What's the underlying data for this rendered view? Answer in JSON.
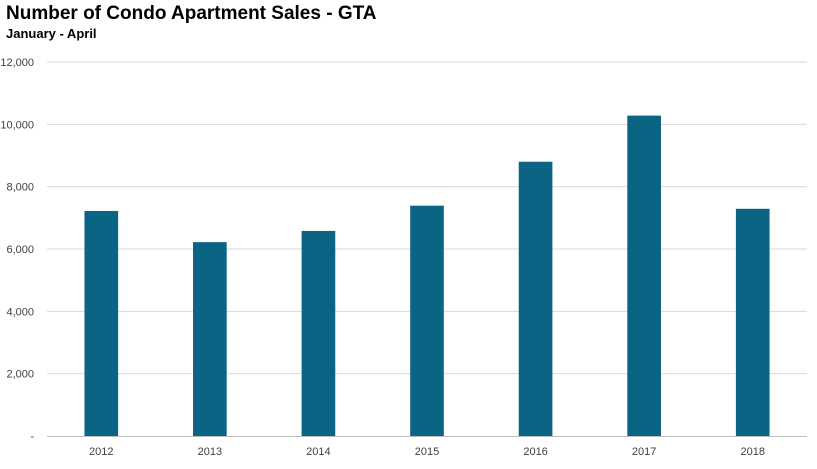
{
  "title": "Number of Condo Apartment Sales - GTA",
  "subtitle": "January - April",
  "colors": {
    "bar": "#0B6484",
    "grid": "#D9D9D9",
    "axis": "#BFBFBF",
    "tick_text": "#404040"
  },
  "chart_data": {
    "type": "bar",
    "title": "Number of Condo Apartment Sales - GTA",
    "subtitle": "January - April",
    "categories": [
      "2012",
      "2013",
      "2014",
      "2015",
      "2016",
      "2017",
      "2018"
    ],
    "values": [
      7220,
      6220,
      6580,
      7390,
      8800,
      10280,
      7290
    ],
    "xlabel": "",
    "ylabel": "",
    "ylim": [
      0,
      12000
    ],
    "yticks": [
      0,
      2000,
      4000,
      6000,
      8000,
      10000,
      12000
    ],
    "ytick_labels": [
      "-",
      "2,000",
      "4,000",
      "6,000",
      "8,000",
      "10,000",
      "12,000"
    ],
    "grid": true,
    "legend": "none"
  }
}
